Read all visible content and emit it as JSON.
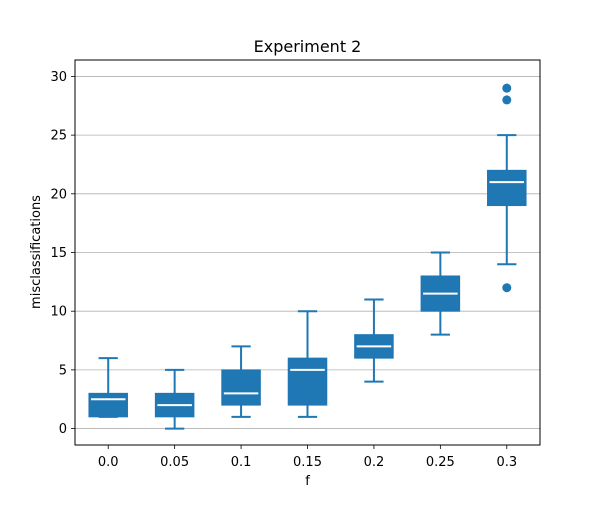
{
  "chart_data": {
    "type": "box",
    "title": "Experiment 2",
    "xlabel": "f",
    "ylabel": "misclassifications",
    "categories": [
      "0.0",
      "0.05",
      "0.1",
      "0.15",
      "0.2",
      "0.25",
      "0.3"
    ],
    "ylim": [
      -1.4,
      31.4
    ],
    "yticks": [
      0,
      5,
      10,
      15,
      20,
      25,
      30
    ],
    "grid": "y-major",
    "color": "#1f77b4",
    "median_color": "#ffffff",
    "boxes": [
      {
        "label": "0.0",
        "whisker_low": 1,
        "q1": 1,
        "median": 2.5,
        "q3": 3,
        "whisker_high": 6,
        "fliers": []
      },
      {
        "label": "0.05",
        "whisker_low": 0,
        "q1": 1,
        "median": 2,
        "q3": 3,
        "whisker_high": 5,
        "fliers": []
      },
      {
        "label": "0.1",
        "whisker_low": 1,
        "q1": 2,
        "median": 3,
        "q3": 5,
        "whisker_high": 7,
        "fliers": []
      },
      {
        "label": "0.15",
        "whisker_low": 1,
        "q1": 2,
        "median": 5,
        "q3": 6,
        "whisker_high": 10,
        "fliers": []
      },
      {
        "label": "0.2",
        "whisker_low": 4,
        "q1": 6,
        "median": 7,
        "q3": 8,
        "whisker_high": 11,
        "fliers": []
      },
      {
        "label": "0.25",
        "whisker_low": 8,
        "q1": 10,
        "median": 11.5,
        "q3": 13,
        "whisker_high": 15,
        "fliers": []
      },
      {
        "label": "0.3",
        "whisker_low": 14,
        "q1": 19,
        "median": 21,
        "q3": 22,
        "whisker_high": 25,
        "fliers": [
          12,
          28,
          29
        ]
      }
    ]
  }
}
